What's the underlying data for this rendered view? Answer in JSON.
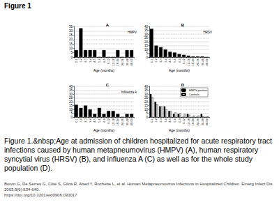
{
  "header": "Figure 1",
  "caption": "Figure 1.&nbsp;Age at admission of children hospitalized for acute respiratory tract infections caused by human metapneumovirus (HMPV) (A), human respiratory syncytial virus (HRSV) (B), and influenza A (C) as well as for the whole study population (D).",
  "citation": [
    "Boivin G, De Serres G, Côté S, Gilca R, Abed Y, Rochette L, et al. Human Metapneumovirus Infections in Hospitalized Children. Emerg Infect Dis. 2003;9(6):634-640.",
    "https://doi.org/10.3201/eid0906.030017"
  ],
  "chart_data": [
    {
      "type": "bar",
      "title": "A",
      "subtitle": "HMPV",
      "x_label": "Age (months)",
      "categories": [
        "0-1",
        "1-2",
        "2-3",
        "3-4",
        "4-5",
        "5-6",
        "6-9",
        "9-12",
        "12-18",
        "18-24",
        "24-36",
        "36-48",
        "48-60"
      ],
      "series": [
        {
          "name": "HMPV",
          "color": "#000000",
          "values": [
            8,
            33,
            8,
            8,
            8,
            0,
            8,
            0,
            0,
            8,
            0,
            8,
            8
          ]
        }
      ],
      "ylim": [
        0,
        35
      ],
      "yticks": [
        0,
        5,
        10,
        15,
        20,
        25,
        30,
        35
      ],
      "grid": true
    },
    {
      "type": "bar",
      "title": "B",
      "subtitle": "HRSV",
      "x_label": "Age (months)",
      "categories": [
        "0-1",
        "1-2",
        "2-3",
        "3-4",
        "4-5",
        "5-6",
        "6-9",
        "9-12",
        "12-18",
        "18-24",
        "24-36",
        "36-48",
        "48-60"
      ],
      "series": [
        {
          "name": "HRSV",
          "color": "#000000",
          "values": [
            37,
            15,
            13,
            10,
            7,
            6,
            4,
            3,
            2,
            1,
            1,
            1,
            0
          ]
        }
      ],
      "ylim": [
        0,
        40
      ],
      "yticks": [
        0,
        5,
        10,
        15,
        20,
        25,
        30,
        35,
        40
      ],
      "grid": true
    },
    {
      "type": "bar",
      "title": "C",
      "subtitle": "Influenza A",
      "x_label": "Age (months)",
      "categories": [
        "0-1",
        "1-2",
        "2-3",
        "3-4",
        "4-5",
        "5-6",
        "6-9",
        "9-12",
        "12-18",
        "18-24",
        "24-36",
        "36-48",
        "48-60"
      ],
      "series": [
        {
          "name": "Influenza A",
          "color": "#000000",
          "values": [
            16,
            12,
            15,
            10,
            4,
            12,
            4,
            8,
            8,
            4,
            0,
            4,
            4
          ]
        }
      ],
      "ylim": [
        0,
        40
      ],
      "yticks": [
        0,
        5,
        10,
        15,
        20,
        25,
        30,
        35,
        40
      ],
      "grid": true
    },
    {
      "type": "bar",
      "title": "D",
      "x_label": "Age (months)",
      "legend": "upper right",
      "categories": [
        "0-1",
        "1-2",
        "2-3",
        "3-4",
        "4-5",
        "5-6",
        "6-9",
        "9-12",
        "12-18",
        "18-24",
        "24-36",
        "36-48",
        "48-60"
      ],
      "series": [
        {
          "name": "HMPV-positive",
          "color": "#000000",
          "values": [
            30,
            20,
            14,
            14,
            8,
            4,
            4,
            0,
            4,
            0,
            0,
            4,
            0
          ]
        },
        {
          "name": "Controls",
          "color": "#c8c8c8",
          "values": [
            26,
            17,
            14,
            10,
            8,
            6,
            5,
            4,
            3,
            2,
            2,
            1,
            1
          ]
        }
      ],
      "ylim": [
        0,
        40
      ],
      "yticks": [
        0,
        5,
        10,
        15,
        20,
        25,
        30,
        35,
        40
      ],
      "grid": true
    }
  ]
}
